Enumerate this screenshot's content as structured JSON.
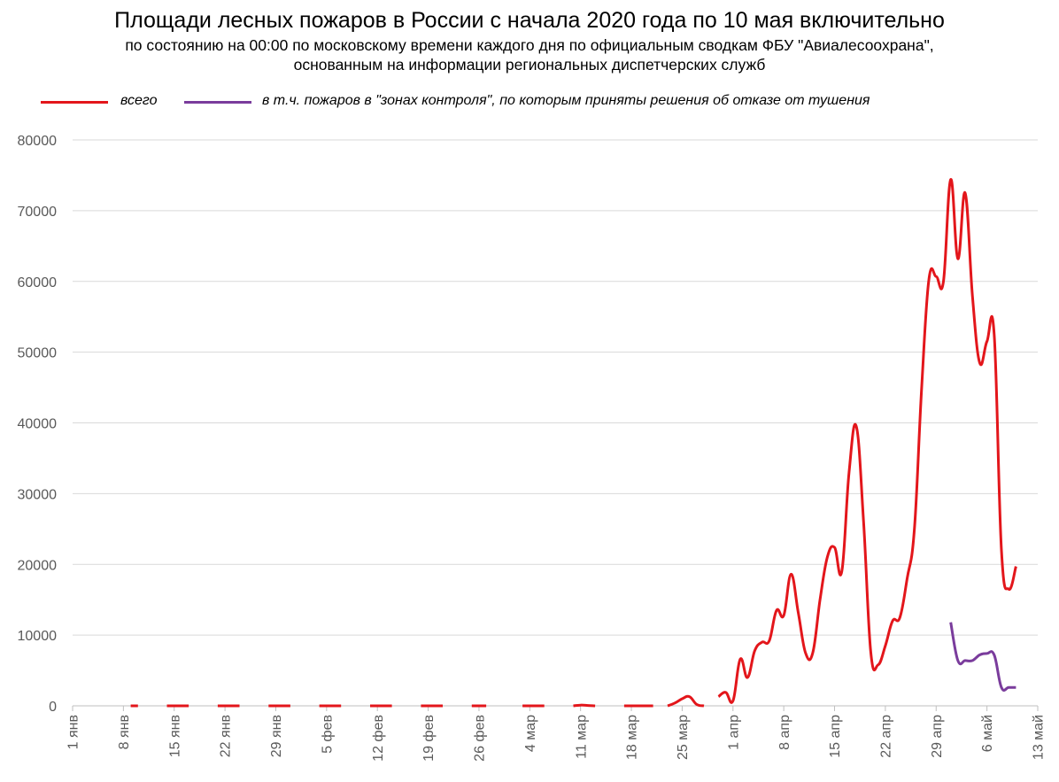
{
  "title": "Площади лесных пожаров в России с начала 2020 года по 10 мая включительно",
  "subtitle_line1": "по состоянию на 00:00 по московскому времени каждого дня по официальным сводкам ФБУ \"Авиалесоохрана\",",
  "subtitle_line2": "основанным на информации региональных диспетчерских служб",
  "colors": {
    "total": "#e3161b",
    "control_zones": "#7a3c9c",
    "grid": "#d9d9d9",
    "axis_text": "#595959"
  },
  "chart_data": {
    "type": "line",
    "title": "Площади лесных пожаров в России с начала 2020 года по 10 мая включительно",
    "xlabel": "",
    "ylabel": "",
    "ylim": [
      0,
      80000
    ],
    "yticks": [
      0,
      10000,
      20000,
      30000,
      40000,
      50000,
      60000,
      70000,
      80000
    ],
    "ytick_labels": [
      "0",
      "10000",
      "20000",
      "30000",
      "40000",
      "50000",
      "60000",
      "70000",
      "80000"
    ],
    "xlim": [
      "2020-01-01",
      "2020-05-13"
    ],
    "xtick_labels": [
      "1 янв",
      "8 янв",
      "15 янв",
      "22 янв",
      "29 янв",
      "5 фев",
      "12 фев",
      "19 фев",
      "26 фев",
      "4 мар",
      "11 мар",
      "18 мар",
      "25 мар",
      "1 апр",
      "8 апр",
      "15 апр",
      "22 апр",
      "29 апр",
      "6 май",
      "13 май"
    ],
    "xtick_dates": [
      "2020-01-01",
      "2020-01-08",
      "2020-01-15",
      "2020-01-22",
      "2020-01-29",
      "2020-02-05",
      "2020-02-12",
      "2020-02-19",
      "2020-02-26",
      "2020-03-04",
      "2020-03-11",
      "2020-03-18",
      "2020-03-25",
      "2020-04-01",
      "2020-04-08",
      "2020-04-15",
      "2020-04-22",
      "2020-04-29",
      "2020-05-06",
      "2020-05-13"
    ],
    "grid": true,
    "legend_position": "top",
    "series": [
      {
        "name": "всего",
        "color": "#e3161b",
        "segments": [
          [
            [
              "2020-01-09",
              0
            ],
            [
              "2020-01-10",
              0
            ]
          ],
          [
            [
              "2020-01-14",
              0
            ],
            [
              "2020-01-15",
              0
            ],
            [
              "2020-01-16",
              0
            ],
            [
              "2020-01-17",
              0
            ]
          ],
          [
            [
              "2020-01-21",
              0
            ],
            [
              "2020-01-22",
              0
            ],
            [
              "2020-01-23",
              0
            ],
            [
              "2020-01-24",
              0
            ]
          ],
          [
            [
              "2020-01-28",
              0
            ],
            [
              "2020-01-29",
              0
            ],
            [
              "2020-01-30",
              0
            ],
            [
              "2020-01-31",
              0
            ]
          ],
          [
            [
              "2020-02-04",
              0
            ],
            [
              "2020-02-05",
              0
            ],
            [
              "2020-02-06",
              0
            ],
            [
              "2020-02-07",
              0
            ]
          ],
          [
            [
              "2020-02-11",
              0
            ],
            [
              "2020-02-12",
              0
            ],
            [
              "2020-02-13",
              0
            ],
            [
              "2020-02-14",
              0
            ]
          ],
          [
            [
              "2020-02-18",
              0
            ],
            [
              "2020-02-19",
              0
            ],
            [
              "2020-02-20",
              0
            ],
            [
              "2020-02-21",
              0
            ]
          ],
          [
            [
              "2020-02-25",
              0
            ],
            [
              "2020-02-26",
              0
            ],
            [
              "2020-02-27",
              0
            ]
          ],
          [
            [
              "2020-03-03",
              0
            ],
            [
              "2020-03-04",
              0
            ],
            [
              "2020-03-05",
              0
            ],
            [
              "2020-03-06",
              0
            ]
          ],
          [
            [
              "2020-03-10",
              0
            ],
            [
              "2020-03-11",
              100
            ],
            [
              "2020-03-12",
              50
            ],
            [
              "2020-03-13",
              0
            ]
          ],
          [
            [
              "2020-03-17",
              0
            ],
            [
              "2020-03-18",
              0
            ],
            [
              "2020-03-19",
              0
            ],
            [
              "2020-03-20",
              0
            ],
            [
              "2020-03-21",
              0
            ]
          ],
          [
            [
              "2020-03-23",
              0
            ],
            [
              "2020-03-24",
              400
            ],
            [
              "2020-03-25",
              1000
            ],
            [
              "2020-03-26",
              1300
            ],
            [
              "2020-03-27",
              200
            ],
            [
              "2020-03-28",
              0
            ]
          ],
          [
            [
              "2020-03-30",
              1300
            ],
            [
              "2020-03-31",
              1900
            ],
            [
              "2020-04-01",
              700
            ],
            [
              "2020-04-02",
              6600
            ],
            [
              "2020-04-03",
              4000
            ],
            [
              "2020-04-04",
              7800
            ],
            [
              "2020-04-05",
              9000
            ],
            [
              "2020-04-06",
              9200
            ],
            [
              "2020-04-07",
              13500
            ],
            [
              "2020-04-08",
              12800
            ],
            [
              "2020-04-09",
              18600
            ],
            [
              "2020-04-10",
              13200
            ],
            [
              "2020-04-11",
              7500
            ],
            [
              "2020-04-12",
              7500
            ],
            [
              "2020-04-13",
              15000
            ],
            [
              "2020-04-14",
              21000
            ],
            [
              "2020-04-15",
              22400
            ],
            [
              "2020-04-16",
              19000
            ],
            [
              "2020-04-17",
              33000
            ],
            [
              "2020-04-18",
              39500
            ],
            [
              "2020-04-19",
              26000
            ],
            [
              "2020-04-20",
              7500
            ],
            [
              "2020-04-21",
              5800
            ],
            [
              "2020-04-22",
              8500
            ],
            [
              "2020-04-23",
              12000
            ],
            [
              "2020-04-24",
              12500
            ],
            [
              "2020-04-25",
              18000
            ],
            [
              "2020-04-26",
              25000
            ],
            [
              "2020-04-27",
              45000
            ],
            [
              "2020-04-28",
              60300
            ],
            [
              "2020-04-29",
              60700
            ],
            [
              "2020-04-30",
              60000
            ],
            [
              "2020-05-01",
              74400
            ],
            [
              "2020-05-02",
              63200
            ],
            [
              "2020-05-03",
              72500
            ],
            [
              "2020-05-04",
              58000
            ],
            [
              "2020-05-05",
              48500
            ],
            [
              "2020-05-06",
              51500
            ],
            [
              "2020-05-07",
              52500
            ],
            [
              "2020-05-08",
              22000
            ],
            [
              "2020-05-09",
              16500
            ],
            [
              "2020-05-10",
              19700
            ]
          ]
        ]
      },
      {
        "name": "в т.ч. пожаров в \"зонах контроля\", по которым приняты решения об отказе от тушения",
        "color": "#7a3c9c",
        "segments": [
          [
            [
              "2020-05-01",
              11800
            ],
            [
              "2020-05-02",
              6400
            ],
            [
              "2020-05-03",
              6400
            ],
            [
              "2020-05-04",
              6400
            ],
            [
              "2020-05-05",
              7200
            ],
            [
              "2020-05-06",
              7400
            ],
            [
              "2020-05-07",
              7200
            ],
            [
              "2020-05-08",
              2600
            ],
            [
              "2020-05-09",
              2600
            ],
            [
              "2020-05-10",
              2600
            ]
          ]
        ]
      }
    ]
  }
}
